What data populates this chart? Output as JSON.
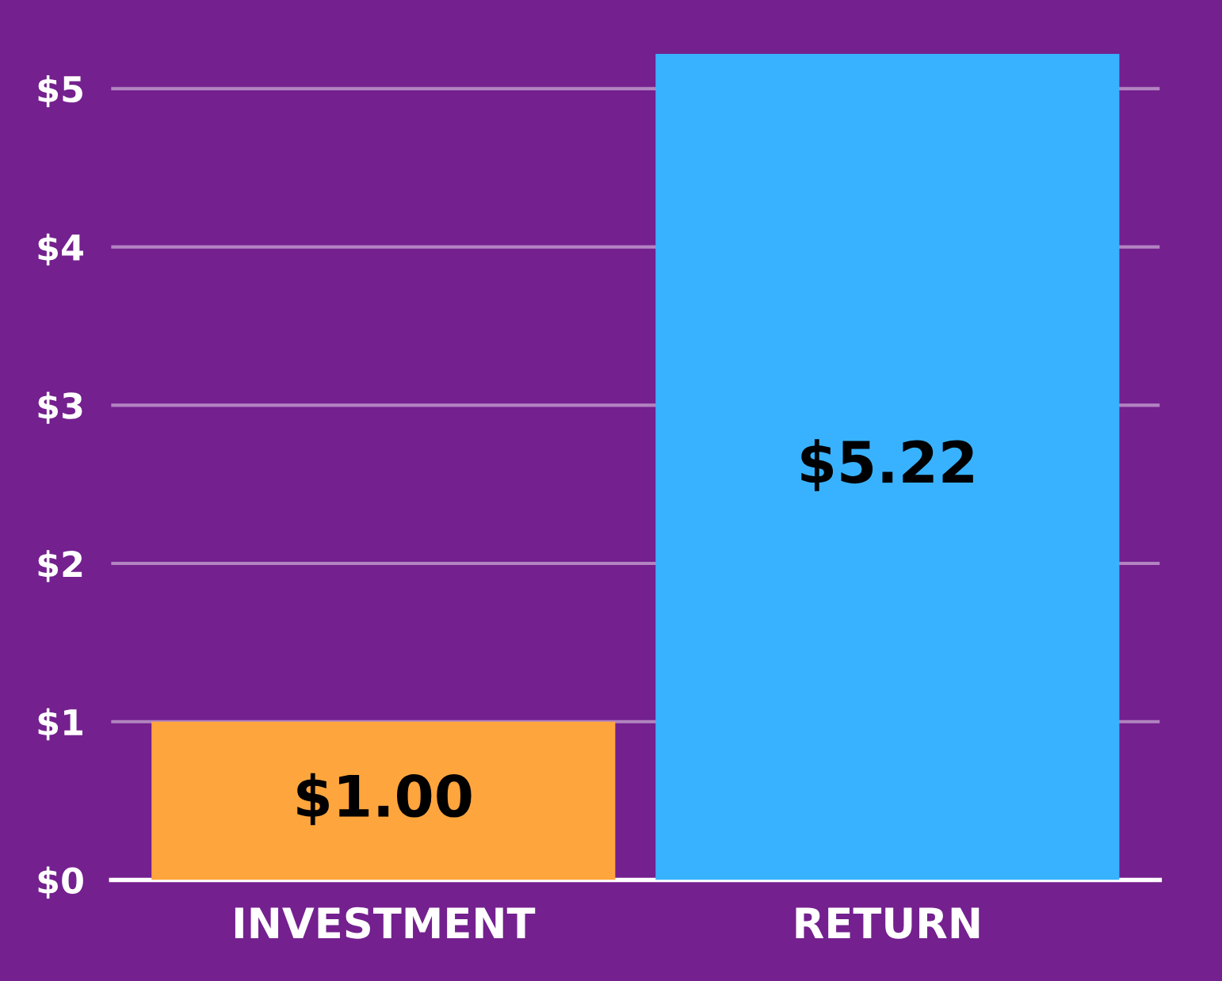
{
  "chart_data": {
    "type": "bar",
    "categories": [
      "INVESTMENT",
      "RETURN"
    ],
    "values": [
      1.0,
      5.22
    ],
    "colors": [
      "#ffa53d",
      "#38b2ff"
    ],
    "value_labels": [
      "$1.00",
      "$5.22"
    ],
    "ylim": [
      0,
      5.25
    ],
    "yticks": [
      {
        "value": 0,
        "label": "$0"
      },
      {
        "value": 1,
        "label": "$1"
      },
      {
        "value": 2,
        "label": "$2"
      },
      {
        "value": 3,
        "label": "$3"
      },
      {
        "value": 4,
        "label": "$4"
      },
      {
        "value": 5,
        "label": "$5"
      }
    ],
    "grid": "y",
    "legend": false
  }
}
